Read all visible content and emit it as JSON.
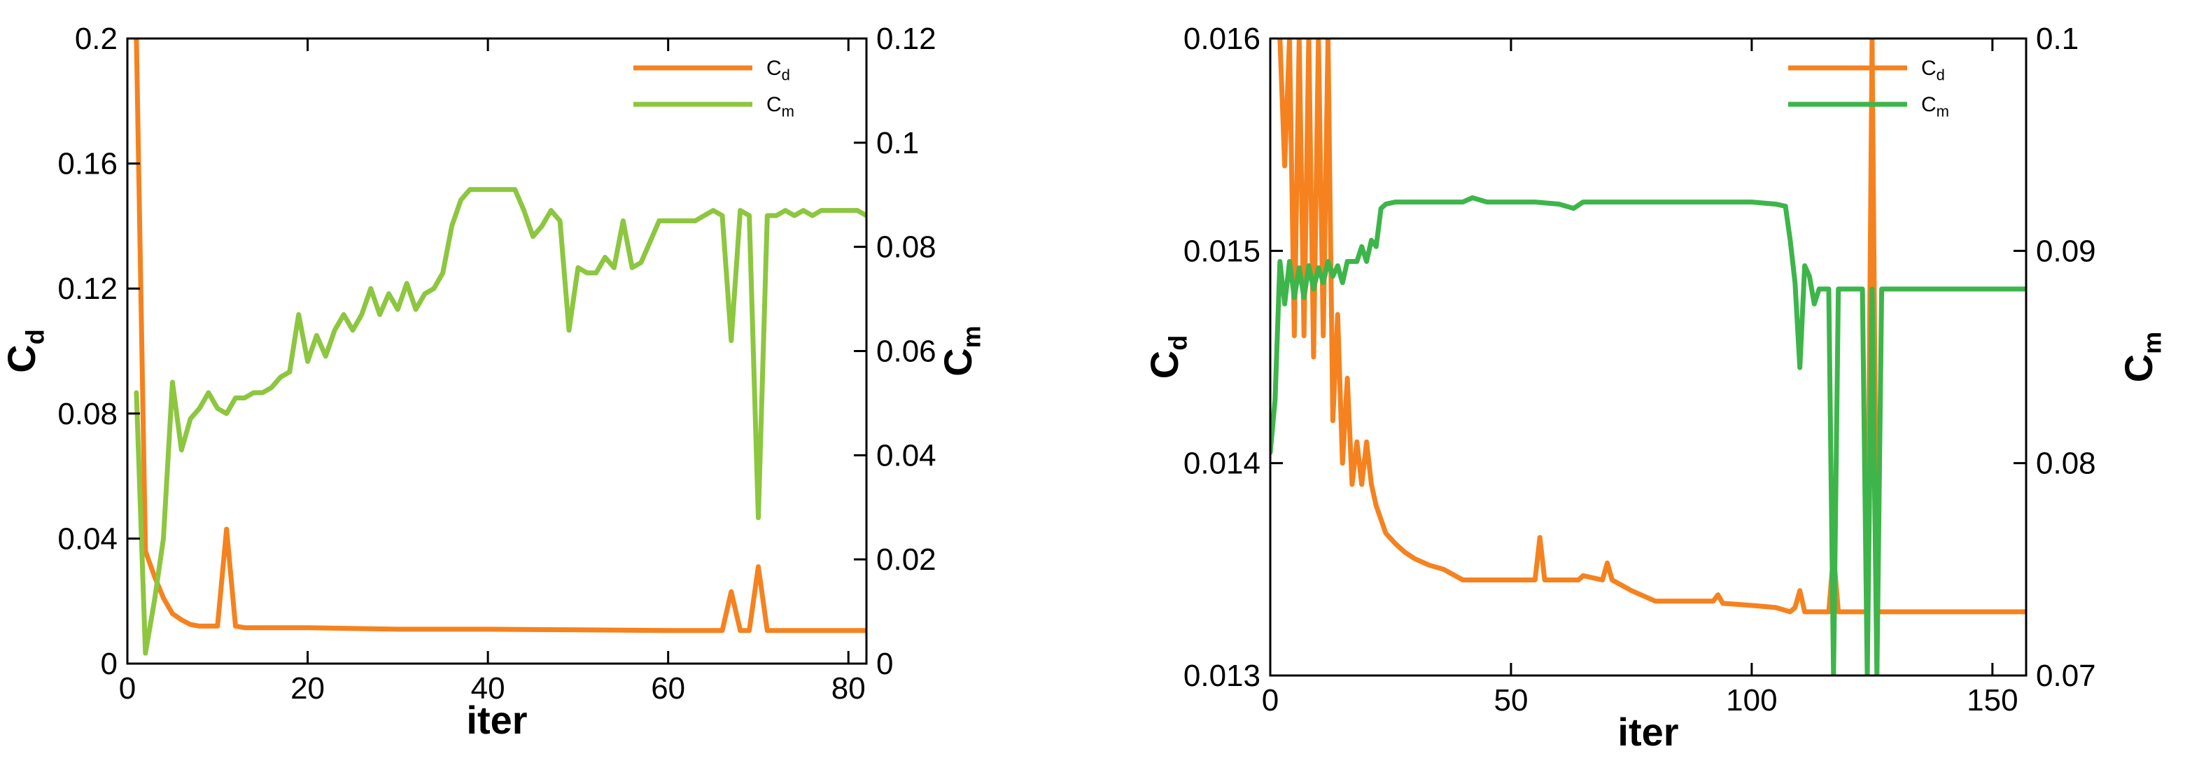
{
  "chart_data": [
    {
      "type": "line",
      "xlabel": "iter",
      "ylabel": "C_d",
      "ylabel2": "C_m",
      "xlim": [
        0,
        82
      ],
      "ylim": [
        0,
        0.2
      ],
      "y2lim": [
        0,
        0.12
      ],
      "xticks": [
        "0",
        "20",
        "40",
        "60",
        "80"
      ],
      "yticks": [
        "0",
        "0.04",
        "0.08",
        "0.12",
        "0.16",
        "0.2"
      ],
      "y2ticks": [
        "0",
        "0.02",
        "0.04",
        "0.06",
        "0.08",
        "0.1",
        "0.12"
      ],
      "grid": false,
      "legend": "top-right",
      "series": [
        {
          "name": "C_d",
          "color": "#F5821F",
          "axis": "left",
          "x": [
            1,
            2,
            3,
            4,
            5,
            6,
            7,
            8,
            9,
            10,
            11,
            12,
            13,
            20,
            30,
            40,
            50,
            60,
            66,
            67,
            68,
            69,
            70,
            71,
            72,
            82
          ],
          "y": [
            0.2,
            0.036,
            0.028,
            0.021,
            0.016,
            0.014,
            0.0125,
            0.012,
            0.012,
            0.012,
            0.043,
            0.012,
            0.0115,
            0.0115,
            0.011,
            0.011,
            0.0108,
            0.0106,
            0.0106,
            0.023,
            0.0106,
            0.0106,
            0.031,
            0.0106,
            0.0106,
            0.0106
          ]
        },
        {
          "name": "C_m",
          "color": "#8DC63F",
          "axis": "right",
          "x": [
            1,
            2,
            3,
            4,
            5,
            6,
            7,
            8,
            9,
            10,
            11,
            12,
            13,
            14,
            15,
            16,
            17,
            18,
            19,
            20,
            21,
            22,
            23,
            24,
            25,
            26,
            27,
            28,
            29,
            30,
            31,
            32,
            33,
            34,
            35,
            36,
            37,
            38,
            39,
            40,
            41,
            42,
            43,
            44,
            45,
            46,
            47,
            48,
            49,
            50,
            51,
            52,
            53,
            54,
            55,
            56,
            57,
            58,
            59,
            60,
            61,
            62,
            63,
            64,
            65,
            66,
            67,
            68,
            69,
            70,
            71,
            72,
            73,
            74,
            75,
            76,
            77,
            78,
            79,
            80,
            81,
            82
          ],
          "y": [
            0.052,
            0.002,
            0.012,
            0.024,
            0.054,
            0.041,
            0.047,
            0.049,
            0.052,
            0.049,
            0.048,
            0.051,
            0.051,
            0.052,
            0.052,
            0.053,
            0.055,
            0.056,
            0.067,
            0.058,
            0.063,
            0.059,
            0.064,
            0.067,
            0.064,
            0.067,
            0.072,
            0.067,
            0.071,
            0.068,
            0.073,
            0.068,
            0.071,
            0.072,
            0.075,
            0.084,
            0.089,
            0.091,
            0.091,
            0.091,
            0.091,
            0.091,
            0.091,
            0.087,
            0.082,
            0.084,
            0.087,
            0.085,
            0.064,
            0.076,
            0.075,
            0.075,
            0.078,
            0.076,
            0.085,
            0.076,
            0.077,
            0.081,
            0.085,
            0.085,
            0.085,
            0.085,
            0.085,
            0.086,
            0.087,
            0.086,
            0.062,
            0.087,
            0.086,
            0.028,
            0.086,
            0.086,
            0.087,
            0.086,
            0.087,
            0.086,
            0.087,
            0.087,
            0.087,
            0.087,
            0.087,
            0.086
          ]
        }
      ]
    },
    {
      "type": "line",
      "xlabel": "iter",
      "ylabel": "C_d",
      "ylabel2": "C_m",
      "xlim": [
        0,
        157
      ],
      "ylim": [
        0.013,
        0.016
      ],
      "y2lim": [
        0.07,
        0.1
      ],
      "xticks": [
        "0",
        "50",
        "100",
        "150"
      ],
      "yticks": [
        "0.013",
        "0.014",
        "0.015",
        "0.016"
      ],
      "y2ticks": [
        "0.07",
        "0.08",
        "0.09",
        "0.1"
      ],
      "grid": false,
      "legend": "top-right",
      "series": [
        {
          "name": "C_d",
          "color": "#F5821F",
          "axis": "left",
          "x": [
            2,
            3,
            4,
            5,
            6,
            7,
            8,
            9,
            10,
            11,
            12,
            13,
            14,
            15,
            16,
            17,
            18,
            19,
            20,
            21,
            22,
            24,
            26,
            28,
            30,
            33,
            36,
            40,
            45,
            50,
            55,
            56,
            57,
            60,
            64,
            65,
            69,
            70,
            71,
            75,
            80,
            85,
            90,
            92,
            93,
            94,
            100,
            105,
            108,
            109,
            110,
            111,
            112,
            115,
            116,
            117,
            118,
            120,
            122,
            124,
            125,
            126,
            128,
            130,
            157
          ],
          "y": [
            0.016,
            0.0154,
            0.016,
            0.0146,
            0.016,
            0.0146,
            0.016,
            0.0145,
            0.016,
            0.0146,
            0.016,
            0.0142,
            0.0147,
            0.014,
            0.0144,
            0.0139,
            0.0141,
            0.0139,
            0.0141,
            0.0139,
            0.0138,
            0.01367,
            0.01362,
            0.01358,
            0.01355,
            0.01352,
            0.0135,
            0.01345,
            0.01345,
            0.01345,
            0.01345,
            0.01365,
            0.01345,
            0.01345,
            0.01345,
            0.01347,
            0.01345,
            0.01353,
            0.01345,
            0.0134,
            0.01335,
            0.01335,
            0.01335,
            0.01335,
            0.01338,
            0.01334,
            0.01333,
            0.01332,
            0.0133,
            0.01332,
            0.0134,
            0.0133,
            0.0133,
            0.0133,
            0.0133,
            0.01357,
            0.0133,
            0.0133,
            0.0133,
            0.0133,
            0.016,
            0.0133,
            0.0133,
            0.0133,
            0.0133
          ]
        },
        {
          "name": "C_m",
          "color": "#3DB54A",
          "axis": "right",
          "x": [
            0,
            1,
            2,
            3,
            4,
            5,
            6,
            7,
            8,
            9,
            10,
            11,
            12,
            13,
            14,
            15,
            16,
            17,
            18,
            19,
            20,
            21,
            22,
            23,
            24,
            26,
            30,
            40,
            42,
            45,
            50,
            55,
            60,
            63,
            65,
            70,
            80,
            90,
            100,
            105,
            107,
            108,
            109,
            110,
            111,
            112,
            113,
            114,
            115,
            116,
            117,
            118,
            119,
            120,
            122,
            123,
            124,
            125,
            126,
            127,
            128,
            129,
            135,
            140,
            150,
            157
          ],
          "y": [
            0.0805,
            0.083,
            0.0895,
            0.0875,
            0.0895,
            0.0878,
            0.0892,
            0.0878,
            0.0893,
            0.0882,
            0.0892,
            0.0885,
            0.0895,
            0.0888,
            0.0893,
            0.0885,
            0.0895,
            0.0895,
            0.0895,
            0.0902,
            0.0895,
            0.0905,
            0.0902,
            0.092,
            0.0922,
            0.0923,
            0.0923,
            0.0923,
            0.0925,
            0.0923,
            0.0923,
            0.0923,
            0.0922,
            0.092,
            0.0923,
            0.0923,
            0.0923,
            0.0923,
            0.0923,
            0.0922,
            0.0921,
            0.0905,
            0.0885,
            0.0845,
            0.0893,
            0.0888,
            0.0875,
            0.0882,
            0.0882,
            0.0882,
            0.07,
            0.0882,
            0.0882,
            0.0882,
            0.0882,
            0.0882,
            0.07,
            0.0882,
            0.07,
            0.0882,
            0.0882,
            0.0882,
            0.0882,
            0.0882,
            0.0882,
            0.0882
          ]
        }
      ]
    }
  ]
}
